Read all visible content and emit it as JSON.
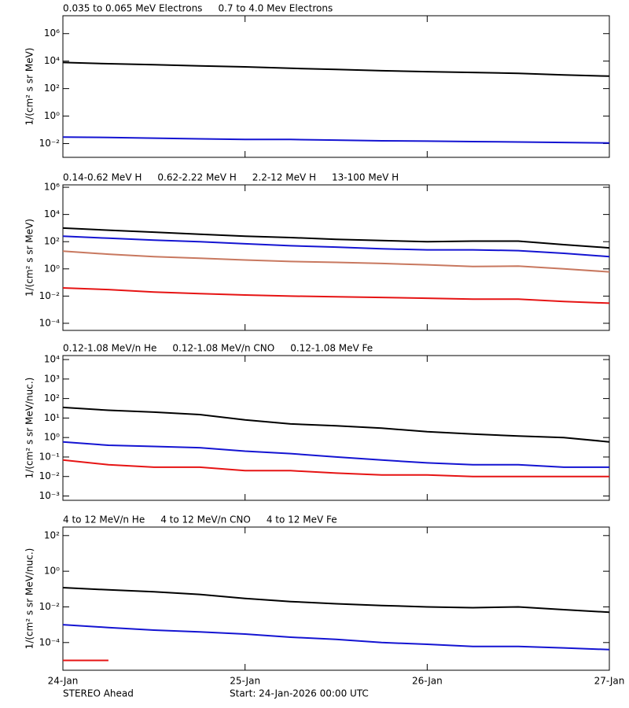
{
  "chart_data": [
    {
      "type": "line",
      "log_scale": true,
      "ylabel": "1/(cm² s sr MeV)",
      "x": [
        0,
        0.25,
        0.5,
        0.75,
        1,
        1.25,
        1.5,
        1.75,
        2,
        2.25,
        2.5,
        2.75,
        3
      ],
      "xlim": [
        0,
        3
      ],
      "ylim": [
        0.001,
        20000000
      ],
      "yticks": [
        {
          "value": 0.01,
          "label": "10⁻²"
        },
        {
          "value": 1,
          "label": "10⁰"
        },
        {
          "value": 100,
          "label": "10²"
        },
        {
          "value": 10000,
          "label": "10⁴"
        },
        {
          "value": 1000000,
          "label": "10⁶"
        }
      ],
      "series": [
        {
          "name": "0.035 to 0.065 MeV Electrons",
          "color": "#000000",
          "values": [
            8000,
            6500,
            5500,
            4500,
            3800,
            3000,
            2500,
            2000,
            1700,
            1500,
            1300,
            1000,
            800
          ]
        },
        {
          "name": "0.7 to 4.0 Mev Electrons",
          "color": "#1414d2",
          "values": [
            0.03,
            0.028,
            0.025,
            0.022,
            0.02,
            0.02,
            0.018,
            0.016,
            0.015,
            0.014,
            0.013,
            0.012,
            0.011
          ]
        }
      ]
    },
    {
      "type": "line",
      "log_scale": true,
      "ylabel": "1/(cm² s sr MeV)",
      "x": [
        0,
        0.25,
        0.5,
        0.75,
        1,
        1.25,
        1.5,
        1.75,
        2,
        2.25,
        2.5,
        2.75,
        3
      ],
      "xlim": [
        0,
        3
      ],
      "ylim": [
        3e-05,
        1500000
      ],
      "yticks": [
        {
          "value": 0.0001,
          "label": "10⁻⁴"
        },
        {
          "value": 0.01,
          "label": "10⁻²"
        },
        {
          "value": 1,
          "label": "10⁰"
        },
        {
          "value": 100,
          "label": "10²"
        },
        {
          "value": 10000,
          "label": "10⁴"
        },
        {
          "value": 1000000,
          "label": "10⁶"
        }
      ],
      "series": [
        {
          "name": "0.14-0.62 MeV H",
          "color": "#000000",
          "values": [
            1000,
            700,
            500,
            350,
            250,
            200,
            150,
            120,
            100,
            110,
            110,
            60,
            35
          ]
        },
        {
          "name": "0.62-2.22 MeV H",
          "color": "#1414d2",
          "values": [
            250,
            180,
            130,
            100,
            70,
            50,
            40,
            30,
            25,
            25,
            22,
            14,
            8
          ]
        },
        {
          "name": "2.2-12 MeV H",
          "color": "#c8785f",
          "values": [
            20,
            12,
            8,
            6,
            4.5,
            3.5,
            3,
            2.5,
            2,
            1.5,
            1.6,
            1,
            0.6
          ]
        },
        {
          "name": "13-100 MeV H",
          "color": "#e61414",
          "values": [
            0.04,
            0.03,
            0.02,
            0.015,
            0.012,
            0.01,
            0.009,
            0.008,
            0.007,
            0.006,
            0.006,
            0.004,
            0.003
          ]
        }
      ]
    },
    {
      "type": "line",
      "log_scale": true,
      "ylabel": "1/(cm² s sr MeV/nuc.)",
      "x": [
        0,
        0.25,
        0.5,
        0.75,
        1,
        1.25,
        1.5,
        1.75,
        2,
        2.25,
        2.5,
        2.75,
        3
      ],
      "xlim": [
        0,
        3
      ],
      "ylim": [
        0.0006,
        16000
      ],
      "yticks": [
        {
          "value": 0.001,
          "label": "10⁻³"
        },
        {
          "value": 0.01,
          "label": "10⁻²"
        },
        {
          "value": 0.1,
          "label": "10⁻¹"
        },
        {
          "value": 1,
          "label": "10⁰"
        },
        {
          "value": 10,
          "label": "10¹"
        },
        {
          "value": 100,
          "label": "10²"
        },
        {
          "value": 1000,
          "label": "10³"
        },
        {
          "value": 10000,
          "label": "10⁴"
        }
      ],
      "series": [
        {
          "name": "0.12-1.08 MeV/n He",
          "color": "#000000",
          "values": [
            35,
            25,
            20,
            15,
            8,
            5,
            4,
            3,
            2,
            1.5,
            1.2,
            1,
            0.6
          ]
        },
        {
          "name": "0.12-1.08 MeV/n CNO",
          "color": "#1414d2",
          "values": [
            0.6,
            0.4,
            0.35,
            0.3,
            0.2,
            0.15,
            0.1,
            0.07,
            0.05,
            0.04,
            0.04,
            0.03,
            0.03
          ]
        },
        {
          "name": "0.12-1.08 MeV Fe",
          "color": "#e61414",
          "values": [
            0.07,
            0.04,
            0.03,
            0.03,
            0.02,
            0.02,
            0.015,
            0.012,
            0.012,
            0.01,
            0.01,
            0.01,
            0.01
          ]
        }
      ]
    },
    {
      "type": "line",
      "log_scale": true,
      "ylabel": "1/(cm² s sr MeV/nuc.)",
      "x": [
        0,
        0.25,
        0.5,
        0.75,
        1,
        1.25,
        1.5,
        1.75,
        2,
        2.25,
        2.5,
        2.75,
        3
      ],
      "xlim": [
        0,
        3
      ],
      "xticks": [
        {
          "value": 0,
          "label": "24-Jan"
        },
        {
          "value": 1,
          "label": "25-Jan"
        },
        {
          "value": 2,
          "label": "26-Jan"
        },
        {
          "value": 3,
          "label": "27-Jan"
        }
      ],
      "ylim": [
        2.8e-06,
        300
      ],
      "yticks": [
        {
          "value": 0.0001,
          "label": "10⁻⁴"
        },
        {
          "value": 0.01,
          "label": "10⁻²"
        },
        {
          "value": 1,
          "label": "10⁰"
        },
        {
          "value": 100,
          "label": "10²"
        }
      ],
      "series": [
        {
          "name": "4 to 12 MeV/n He",
          "color": "#000000",
          "values": [
            0.12,
            0.09,
            0.07,
            0.05,
            0.03,
            0.02,
            0.015,
            0.012,
            0.01,
            0.009,
            0.01,
            0.007,
            0.005
          ]
        },
        {
          "name": "4 to 12 MeV/n CNO",
          "color": "#1414d2",
          "values": [
            0.001,
            0.0007,
            0.0005,
            0.0004,
            0.0003,
            0.0002,
            0.00015,
            0.0001,
            8e-05,
            6e-05,
            6e-05,
            5e-05,
            4e-05
          ]
        },
        {
          "name": "4 to 12 MeV Fe",
          "color": "#e61414",
          "values": [
            1e-05,
            1e-05,
            null,
            null,
            null,
            null,
            null,
            null,
            null,
            null,
            null,
            null,
            null
          ]
        }
      ]
    }
  ],
  "footer": {
    "left": "STEREO Ahead",
    "right": "Start: 24-Jan-2026 00:00 UTC"
  }
}
